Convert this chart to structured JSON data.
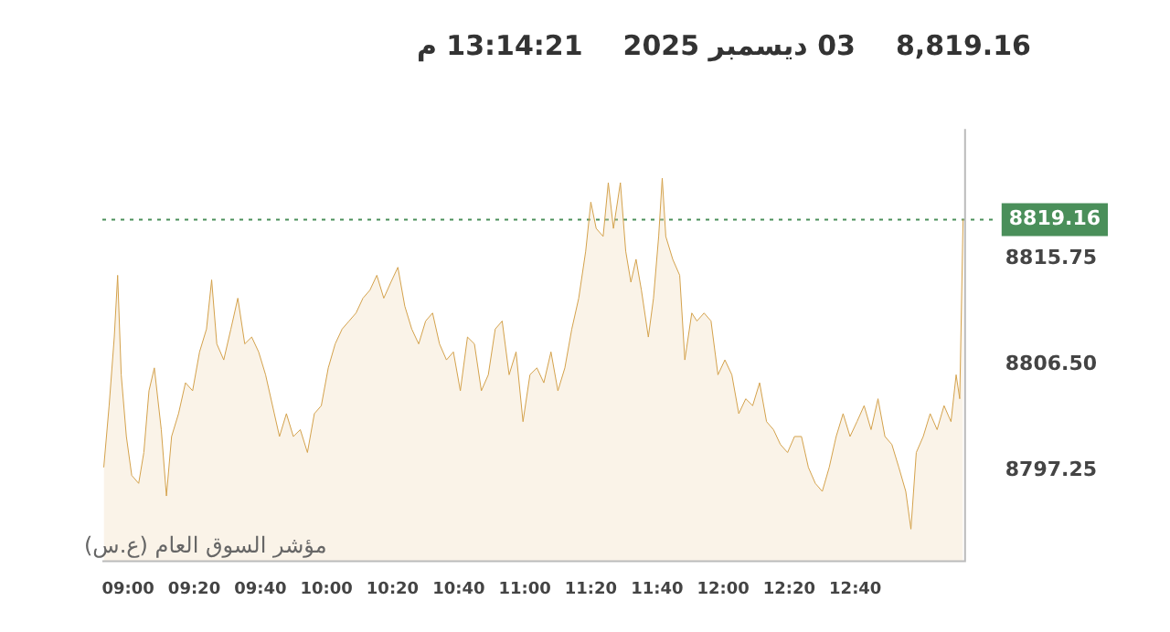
{
  "chart_data": {
    "type": "area",
    "title": "8,819.16",
    "subtitle": "03 ديسمبر 2025",
    "annotations": [
      "13:14:21 م",
      "مؤشر السوق العام (ع.س)"
    ],
    "x": [
      8.877,
      8.904,
      8.93,
      8.947,
      8.965,
      8.991,
      9.018,
      9.053,
      9.079,
      9.105,
      9.132,
      9.167,
      9.193,
      9.219,
      9.254,
      9.289,
      9.325,
      9.36,
      9.395,
      9.421,
      9.447,
      9.482,
      9.518,
      9.553,
      9.588,
      9.623,
      9.658,
      9.693,
      9.737,
      9.763,
      9.798,
      9.833,
      9.868,
      9.904,
      9.939,
      9.974,
      10.009,
      10.044,
      10.079,
      10.114,
      10.149,
      10.184,
      10.219,
      10.254,
      10.289,
      10.325,
      10.36,
      10.395,
      10.43,
      10.465,
      10.5,
      10.535,
      10.57,
      10.605,
      10.64,
      10.675,
      10.711,
      10.746,
      10.781,
      10.816,
      10.851,
      10.886,
      10.921,
      10.956,
      10.991,
      11.026,
      11.061,
      11.096,
      11.132,
      11.167,
      11.202,
      11.237,
      11.272,
      11.307,
      11.333,
      11.36,
      11.395,
      11.421,
      11.447,
      11.482,
      11.509,
      11.535,
      11.561,
      11.588,
      11.623,
      11.649,
      11.675,
      11.693,
      11.711,
      11.746,
      11.781,
      11.807,
      11.842,
      11.868,
      11.904,
      11.939,
      11.974,
      12.009,
      12.044,
      12.079,
      12.114,
      12.149,
      12.184,
      12.219,
      12.254,
      12.289,
      12.325,
      12.36,
      12.395,
      12.43,
      12.465,
      12.5,
      12.535,
      12.57,
      12.605,
      12.64,
      12.675,
      12.711,
      12.746,
      12.781,
      12.816,
      12.851,
      12.886,
      12.921,
      12.947,
      12.974,
      13.009,
      13.044,
      13.079,
      13.114,
      13.149,
      13.175,
      13.193,
      13.21
    ],
    "series": [
      {
        "color": "#d4a24c",
        "values": [
          8797.5,
          8802.9,
          8808.9,
          8814.3,
          8805.6,
          8800.2,
          8796.8,
          8796.1,
          8798.8,
          8804.2,
          8806.2,
          8800.8,
          8795.0,
          8800.2,
          8802.2,
          8804.9,
          8804.2,
          8807.6,
          8809.6,
          8813.9,
          8808.3,
          8806.9,
          8809.6,
          8812.3,
          8808.3,
          8808.9,
          8807.6,
          8805.6,
          8802.2,
          8800.2,
          8802.2,
          8800.2,
          8800.8,
          8798.8,
          8802.2,
          8802.9,
          8806.2,
          8808.3,
          8809.6,
          8810.3,
          8811.0,
          8812.3,
          8813.0,
          8814.3,
          8812.3,
          8813.7,
          8815.0,
          8811.6,
          8809.6,
          8808.3,
          8810.3,
          8811.0,
          8808.3,
          8806.9,
          8807.6,
          8804.2,
          8808.9,
          8808.3,
          8804.2,
          8805.6,
          8809.6,
          8810.3,
          8805.6,
          8807.6,
          8801.5,
          8805.6,
          8806.2,
          8804.9,
          8807.6,
          8804.2,
          8806.2,
          8809.6,
          8812.3,
          8816.4,
          8820.7,
          8818.4,
          8817.7,
          8822.4,
          8818.4,
          8822.4,
          8816.4,
          8813.7,
          8815.7,
          8813.0,
          8808.9,
          8812.3,
          8817.7,
          8822.8,
          8817.7,
          8815.7,
          8814.3,
          8806.9,
          8811.0,
          8810.3,
          8811.0,
          8810.3,
          8805.6,
          8806.9,
          8805.6,
          8802.2,
          8803.5,
          8802.9,
          8804.9,
          8801.5,
          8800.8,
          8799.5,
          8798.8,
          8800.2,
          8800.2,
          8797.5,
          8796.1,
          8795.4,
          8797.5,
          8800.2,
          8802.2,
          8800.2,
          8801.5,
          8802.9,
          8800.8,
          8803.5,
          8800.2,
          8799.5,
          8797.5,
          8795.4,
          8792.1,
          8798.8,
          8800.2,
          8802.2,
          8800.8,
          8802.9,
          8801.5,
          8805.6,
          8803.5,
          8819.2
        ]
      }
    ],
    "xlim": [
      8.87,
      13.22
    ],
    "xticks": [
      {
        "value": 9,
        "label": "09:00"
      },
      {
        "value": 9.3333,
        "label": "09:20"
      },
      {
        "value": 9.6667,
        "label": "09:40"
      },
      {
        "value": 10,
        "label": "10:00"
      },
      {
        "value": 10.3333,
        "label": "10:20"
      },
      {
        "value": 10.6667,
        "label": "10:40"
      },
      {
        "value": 11,
        "label": "11:00"
      },
      {
        "value": 11.3333,
        "label": "11:20"
      },
      {
        "value": 11.6667,
        "label": "11:40"
      },
      {
        "value": 12,
        "label": "12:00"
      },
      {
        "value": 12.3333,
        "label": "12:20"
      },
      {
        "value": 12.6667,
        "label": "12:40"
      }
    ],
    "ylim": [
      8789.3,
      8827.1
    ],
    "yticks": [
      8797.25,
      {
        "value": 8806.5,
        "label": "8806.50"
      },
      8815.75
    ],
    "ref_lines": [
      {
        "axis": "y",
        "value": 8819.16,
        "label": "8819.16",
        "color": "#4a8f5a",
        "line_style": "dotted"
      }
    ],
    "grid": false,
    "legend": false
  }
}
